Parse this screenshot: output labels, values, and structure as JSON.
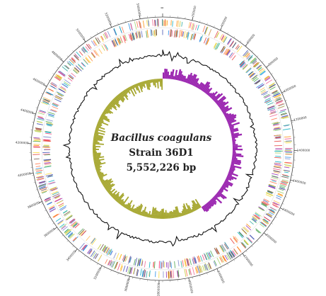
{
  "genome_map": {
    "organism": "Bacillus coagulans",
    "strain": "Strain 36D1",
    "length": "5,552,226 bp",
    "genome_bp": 5552226,
    "tick_interval_bp": 200000,
    "colors": {
      "gc_skew_positive": "#9b27b0",
      "gc_skew_negative": "#a7a832",
      "gc_content": "#111111",
      "outer_ring": "#444444",
      "gene_palette": [
        "#e53935",
        "#1e88e5",
        "#43a047",
        "#fb8c00",
        "#8e24aa",
        "#fdd835",
        "#00acc1",
        "#6d4c41",
        "#ec407a",
        "#3949ab",
        "#c0ca33",
        "#ff7043",
        "#26a69a",
        "#5c6bc0",
        "#ffb74d",
        "#9ccc65",
        "#f06292",
        "#7986cb"
      ]
    },
    "rings": [
      "scale",
      "genes-forward",
      "genes-reverse",
      "gc-content",
      "gc-skew"
    ]
  }
}
